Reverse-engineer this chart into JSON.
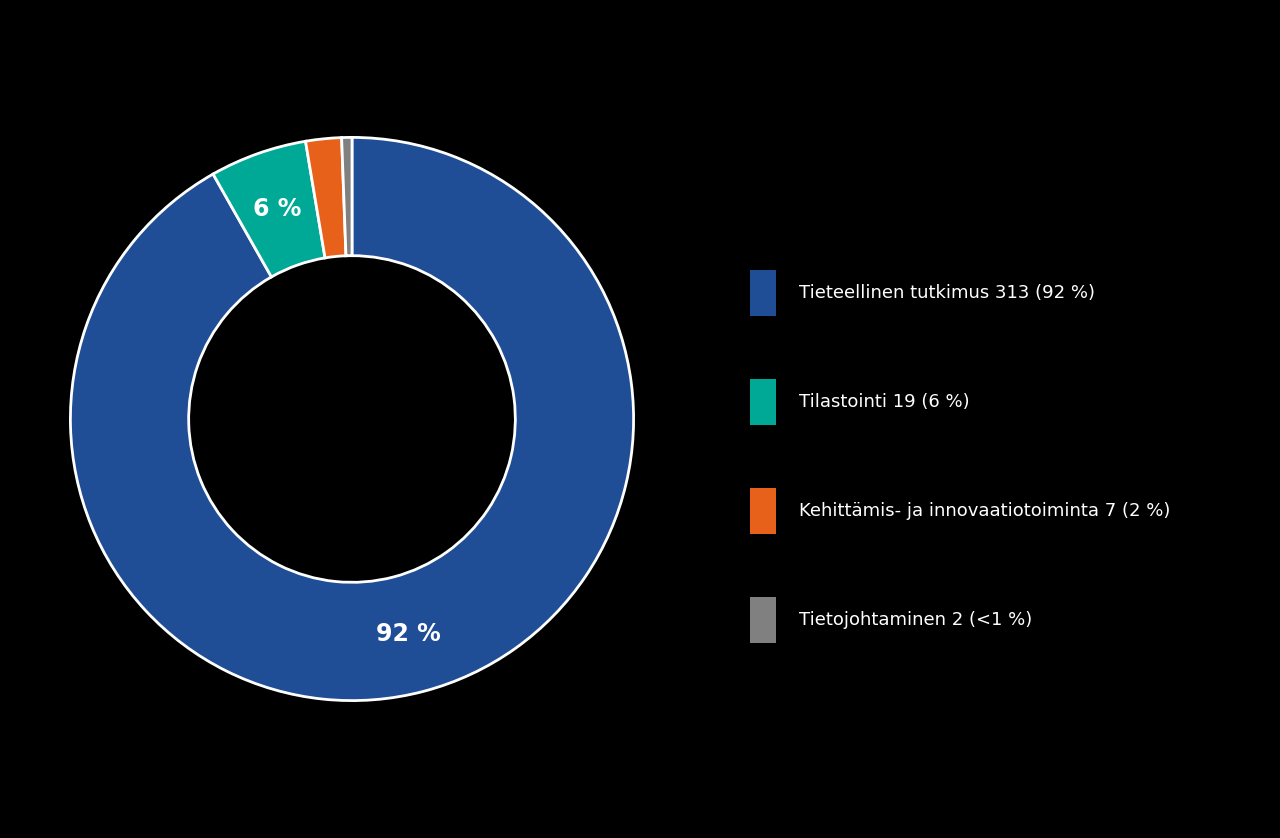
{
  "slices": [
    313,
    19,
    7,
    2
  ],
  "legend_labels": [
    "Tieteellinen tutkimus 313 (92 %)",
    "Tilastointi 19 (6 %)",
    "Kehittämis- ja innovaatiotoiminta 7 (2 %)",
    "Tietojohtaminen 2 (<1 %)"
  ],
  "colors": [
    "#1f4e96",
    "#00a896",
    "#e8611a",
    "#808080"
  ],
  "pct_labels": [
    "92 %",
    "6 %",
    "",
    ""
  ],
  "background_color": "#000000",
  "text_color": "#ffffff",
  "donut_width": 0.42,
  "edge_color": "#ffffff",
  "edge_linewidth": 2.0,
  "label_fontsize": 17,
  "legend_fontsize": 13,
  "legend_square_size": 18
}
